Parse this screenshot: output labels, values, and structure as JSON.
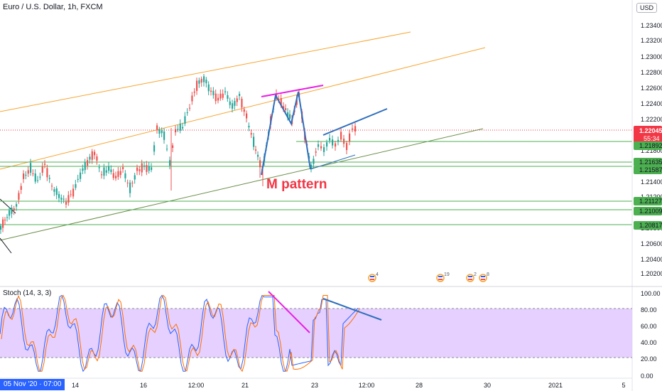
{
  "header": {
    "symbol_title": "Euro / U.S. Dollar, 1h, FXCM",
    "currency": "USD"
  },
  "price_axis": {
    "ticks": [
      "1.23400",
      "1.23200",
      "1.23000",
      "1.22800",
      "1.22600",
      "1.22400",
      "1.22200",
      "1.22000",
      "1.21800",
      "1.21600",
      "1.21400",
      "1.21200",
      "1.21000",
      "1.20800",
      "1.20600",
      "1.20400",
      "1.20200"
    ],
    "current_price": "1.22045",
    "countdown": "55:34",
    "levels": [
      "1.21892",
      "1.21635",
      "1.21587",
      "1.21127",
      "1.21009",
      "1.20817"
    ],
    "last_price_color": "#f23645",
    "level_color": "#4caf50"
  },
  "annotation": {
    "text": "M pattern",
    "color": "#f23645"
  },
  "events": [
    "4",
    "19",
    "2",
    "8"
  ],
  "stoch": {
    "title": "Stoch (14, 3, 3)",
    "ticks": [
      "100.00",
      "80.00",
      "60.00",
      "40.00",
      "20.00",
      "0.00"
    ],
    "band": [
      20,
      80
    ],
    "band_color": "#e1c8ff"
  },
  "time_axis": {
    "labels": [
      "14",
      "16",
      "12:00",
      "21",
      "23",
      "12:00",
      "28",
      "30",
      "2021",
      "5"
    ],
    "cursor_date": "05 Nov '20 · 07:00"
  },
  "colors": {
    "up": "#26a69a",
    "down": "#ef5350",
    "channel": "#f7a531",
    "support": "#6c8f4a",
    "divergence_pink": "#e91ee5",
    "divergence_blue": "#2f6fbd",
    "stoch_k": "#2962ff",
    "stoch_d": "#ff6d00"
  }
}
